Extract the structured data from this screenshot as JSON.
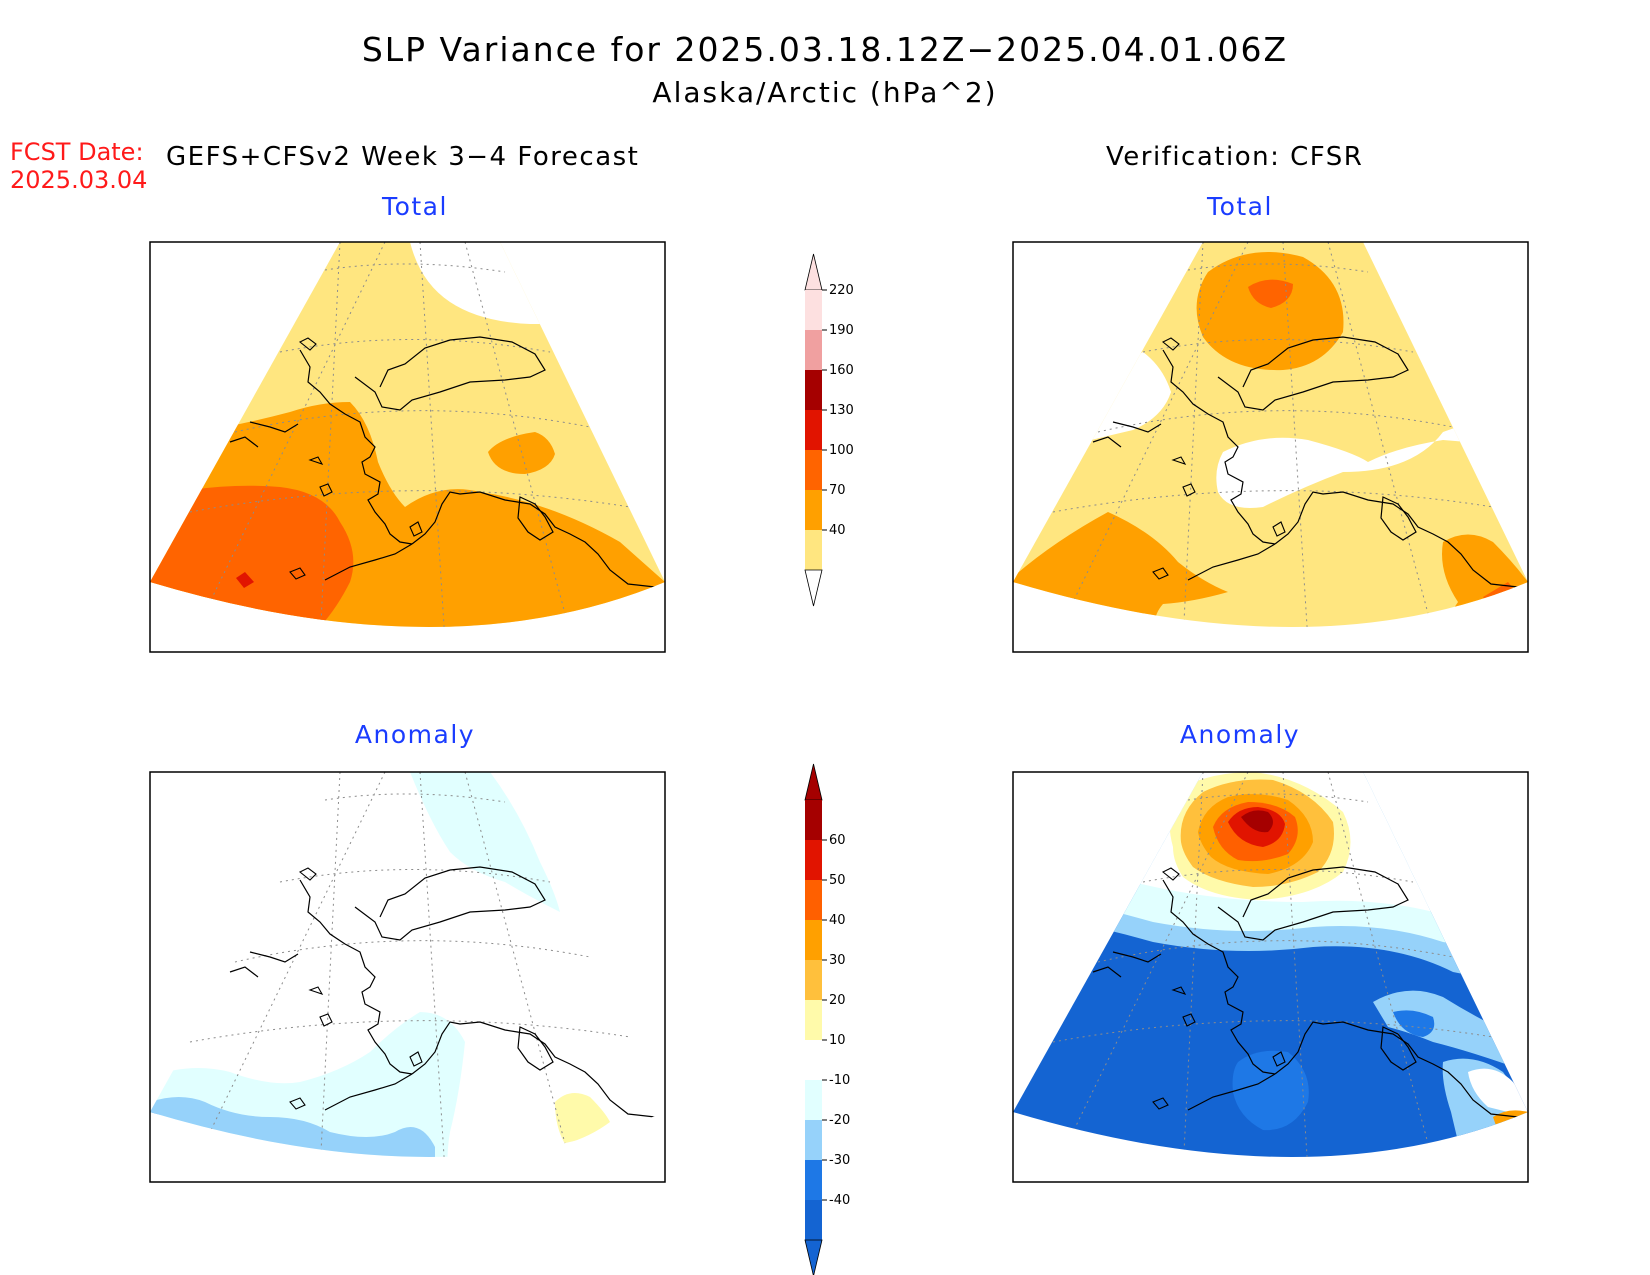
{
  "header": {
    "title": "SLP Variance for 2025.03.18.12Z−2025.04.01.06Z",
    "subtitle": "Alaska/Arctic (hPa^2)",
    "fcst_label_line1": "FCST Date:",
    "fcst_label_line2": "2025.03.04",
    "model_label": "GEFS+CFSv2 Week 3−4 Forecast",
    "verification_label": "Verification: CFSR"
  },
  "panels": {
    "forecast_total_title": "Total",
    "verification_total_title": "Total",
    "forecast_anomaly_title": "Anomaly",
    "verification_anomaly_title": "Anomaly"
  },
  "colorbars": {
    "total": {
      "levels": [
        "40",
        "70",
        "100",
        "130",
        "160",
        "190",
        "220"
      ],
      "colors": [
        "#ffe680",
        "#ffa000",
        "#ff6400",
        "#e11400",
        "#a50000",
        "#f0a0a0",
        "#fde0e0"
      ]
    },
    "anomaly": {
      "levels": [
        "-40",
        "-30",
        "-20",
        "-10",
        "10",
        "20",
        "30",
        "40",
        "50",
        "60"
      ],
      "colors": [
        "#1464d2",
        "#1e78e6",
        "#96d2fa",
        "#e1ffff",
        "#ffffff",
        "#fffaaa",
        "#ffc03c",
        "#ffa000",
        "#ff6000",
        "#e11400",
        "#a50000"
      ]
    }
  },
  "colors": {
    "title_red": "#ff1a1a",
    "panel_title_blue": "#1a3cff"
  }
}
